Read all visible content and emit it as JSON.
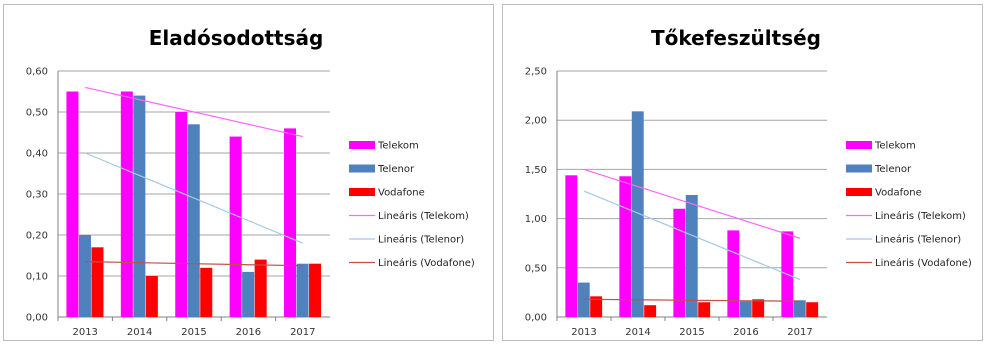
{
  "chart_data": [
    {
      "type": "bar",
      "title": "Eladósodottság",
      "categories": [
        "2013",
        "2014",
        "2015",
        "2016",
        "2017"
      ],
      "ylim": [
        0,
        0.6
      ],
      "yticks": [
        "0,00",
        "0,10",
        "0,20",
        "0,30",
        "0,40",
        "0,50",
        "0,60"
      ],
      "grid": true,
      "legend_position": "right",
      "series": [
        {
          "name": "Telekom",
          "color": "#ff00ff",
          "values": [
            0.55,
            0.55,
            0.5,
            0.44,
            0.46
          ]
        },
        {
          "name": "Telenor",
          "color": "#4f81bd",
          "values": [
            0.2,
            0.54,
            0.47,
            0.11,
            0.13
          ]
        },
        {
          "name": "Vodafone",
          "color": "#ff0000",
          "values": [
            0.17,
            0.1,
            0.12,
            0.14,
            0.13
          ]
        }
      ],
      "trendlines": [
        {
          "name": "Lineáris (Telekom)",
          "color": "#ff66ff",
          "from": 0.56,
          "to": 0.44
        },
        {
          "name": "Lineáris (Telenor)",
          "color": "#a6c8e6",
          "from": 0.4,
          "to": 0.18
        },
        {
          "name": "Lineáris (Vodafone)",
          "color": "#c0504d",
          "from": 0.135,
          "to": 0.125
        }
      ]
    },
    {
      "type": "bar",
      "title": "Tőkefeszültség",
      "categories": [
        "2013",
        "2014",
        "2015",
        "2016",
        "2017"
      ],
      "ylim": [
        0,
        2.5
      ],
      "yticks": [
        "0,00",
        "0,50",
        "1,00",
        "1,50",
        "2,00",
        "2,50"
      ],
      "grid": true,
      "legend_position": "right",
      "series": [
        {
          "name": "Telekom",
          "color": "#ff00ff",
          "values": [
            1.44,
            1.43,
            1.1,
            0.88,
            0.87
          ]
        },
        {
          "name": "Telenor",
          "color": "#4f81bd",
          "values": [
            0.35,
            2.09,
            1.24,
            0.16,
            0.17
          ]
        },
        {
          "name": "Vodafone",
          "color": "#ff0000",
          "values": [
            0.21,
            0.12,
            0.15,
            0.18,
            0.15
          ]
        }
      ],
      "trendlines": [
        {
          "name": "Lineáris (Telekom)",
          "color": "#ff66ff",
          "from": 1.5,
          "to": 0.8
        },
        {
          "name": "Lineáris (Telenor)",
          "color": "#a6c8e6",
          "from": 1.28,
          "to": 0.38
        },
        {
          "name": "Lineáris (Vodafone)",
          "color": "#c0504d",
          "from": 0.18,
          "to": 0.16
        }
      ]
    }
  ]
}
